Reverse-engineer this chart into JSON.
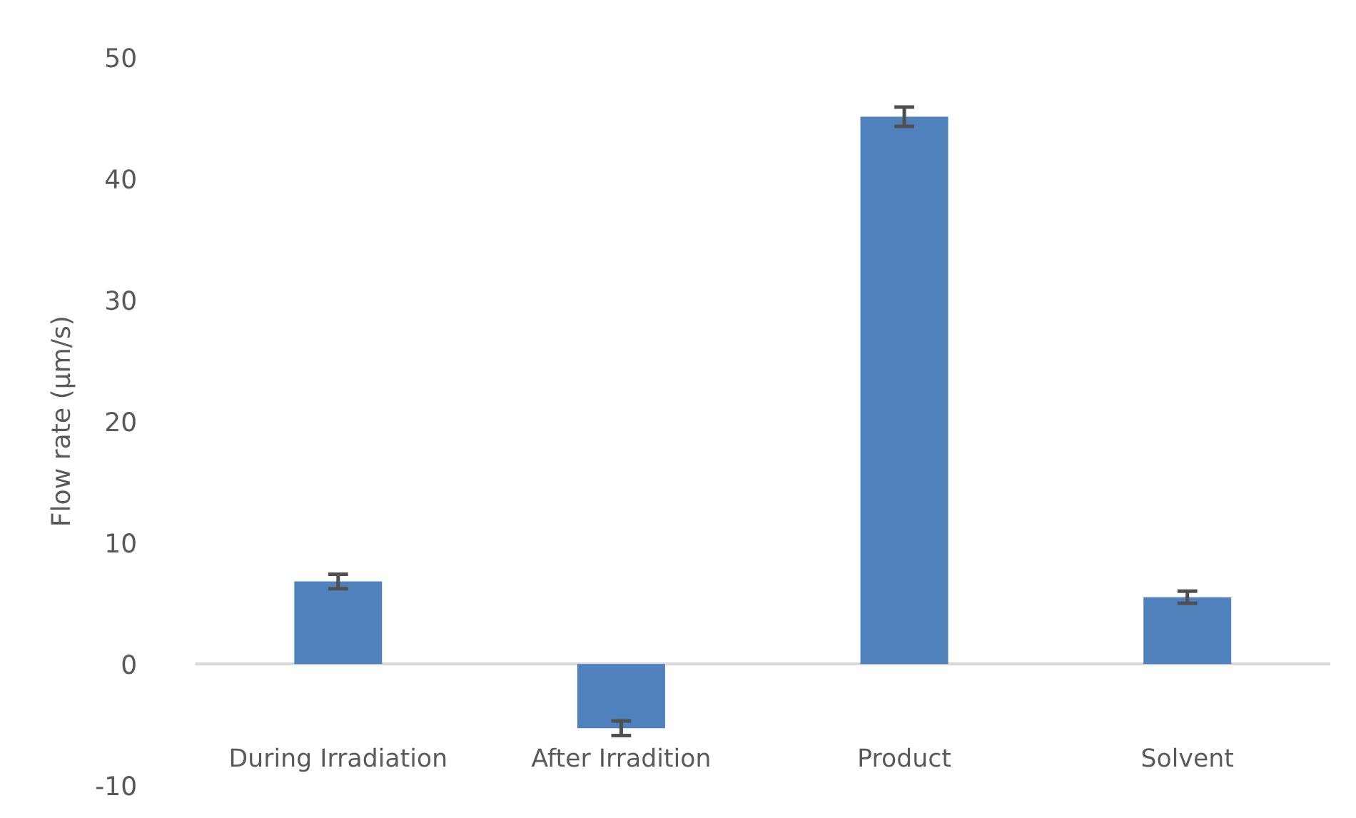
{
  "chart_data": {
    "type": "bar",
    "ylabel": "Flow rate (μm/s)",
    "categories": [
      "During Irradiation",
      "After Irradition",
      "Product",
      "Solvent"
    ],
    "values": [
      6.8,
      -5.3,
      45.1,
      5.5
    ],
    "errors": [
      0.6,
      0.6,
      0.8,
      0.5
    ],
    "color": "#4f81bd",
    "ylim": [
      -10,
      50
    ],
    "yticks": [
      -10,
      0,
      10,
      20,
      30,
      40,
      50
    ]
  }
}
